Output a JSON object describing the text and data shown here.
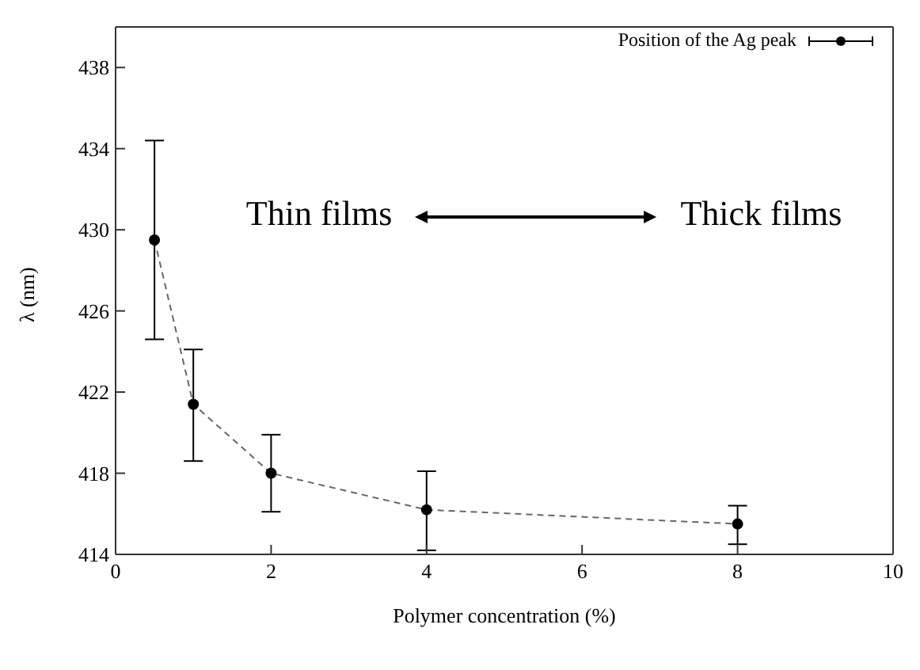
{
  "chart_data": {
    "type": "line",
    "xlabel": "Polymer concentration (%)",
    "ylabel": "λ (nm)",
    "x": [
      0.5,
      1,
      2,
      4,
      8
    ],
    "series": [
      {
        "name": "Position of the Ag peak",
        "color": "#000000",
        "values": [
          429.5,
          421.4,
          418.0,
          416.2,
          415.5
        ],
        "errors": [
          [
            424.6,
            434.4
          ],
          [
            418.6,
            424.1
          ],
          [
            416.1,
            419.9
          ],
          [
            414.2,
            418.1
          ],
          [
            414.5,
            416.4
          ]
        ]
      }
    ],
    "xlim": [
      0,
      10
    ],
    "xticks": [
      0,
      2,
      4,
      6,
      8,
      10
    ],
    "ylim": [
      414,
      440
    ],
    "yticks": [
      414,
      418,
      422,
      426,
      430,
      434,
      438
    ],
    "annotations": [
      "Thin films",
      "Thick films"
    ],
    "marker": "circle",
    "line_style": "dashed",
    "grid": false,
    "legend": "top right"
  }
}
